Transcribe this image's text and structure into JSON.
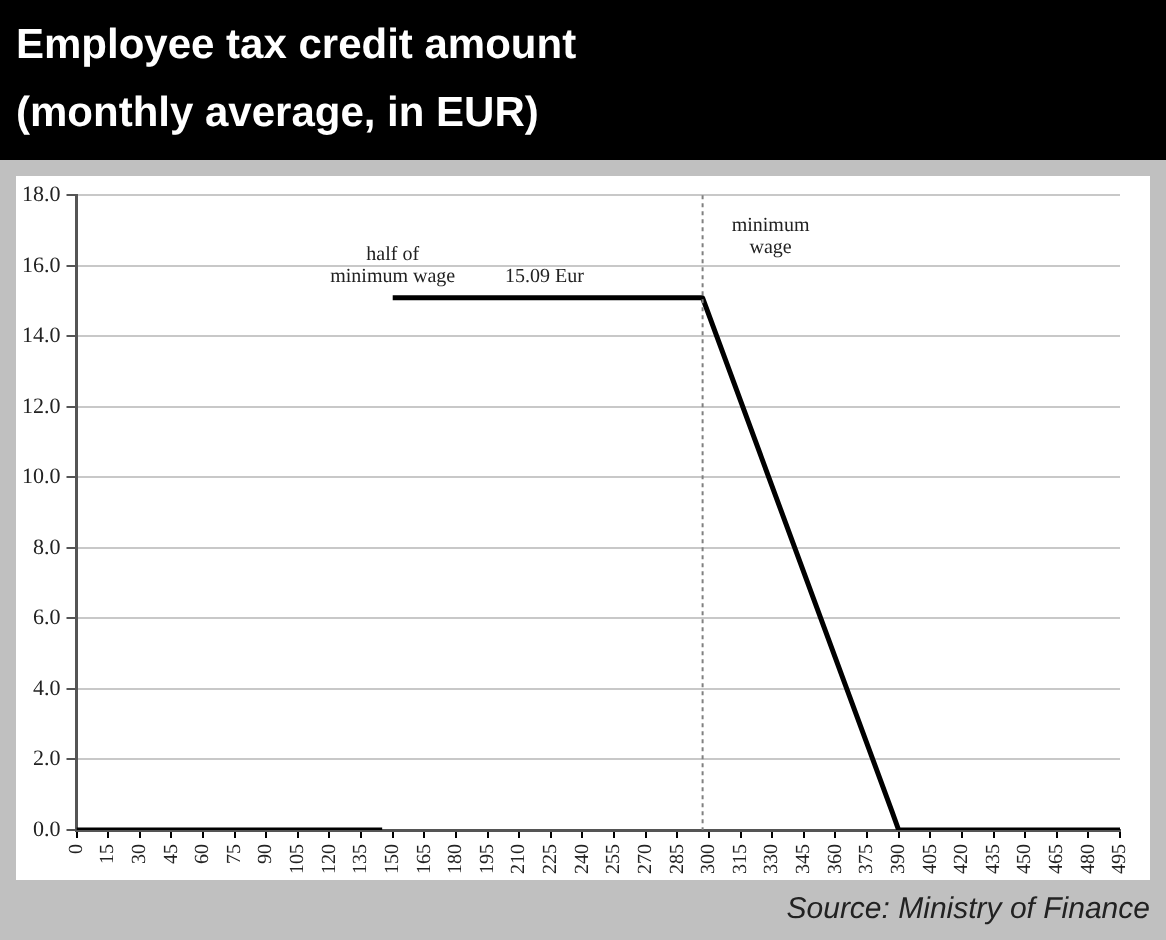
{
  "chart_data": {
    "type": "line",
    "title": "Employee tax credit amount",
    "subtitle": "(monthly average, in EUR)",
    "x": [
      0,
      145,
      147,
      150,
      297,
      387,
      390,
      495
    ],
    "series": [
      {
        "color": "#000000",
        "values": [
          0,
          0,
          null,
          15.09,
          15.09,
          0.5,
          0,
          0
        ]
      }
    ],
    "xlim": [
      0,
      495
    ],
    "xticks": [
      0,
      15,
      30,
      45,
      60,
      75,
      90,
      105,
      120,
      135,
      150,
      165,
      180,
      195,
      210,
      225,
      240,
      255,
      270,
      285,
      300,
      315,
      330,
      345,
      360,
      375,
      390,
      405,
      420,
      435,
      450,
      465,
      480,
      495
    ],
    "ylim": [
      0,
      18
    ],
    "yticks": [
      {
        "value": 0,
        "label": "0.0"
      },
      {
        "value": 2,
        "label": "2.0"
      },
      {
        "value": 4,
        "label": "4.0"
      },
      {
        "value": 6,
        "label": "6.0"
      },
      {
        "value": 8,
        "label": "8.0"
      },
      {
        "value": 10,
        "label": "10.0"
      },
      {
        "value": 12,
        "label": "12.0"
      },
      {
        "value": 14,
        "label": "14.0"
      },
      {
        "value": 16,
        "label": "16.0"
      },
      {
        "value": 18,
        "label": "18.0"
      }
    ],
    "grid": "y",
    "legend": false,
    "marker": "none",
    "line_style": "solid",
    "ref_lines": [
      {
        "axis": "x",
        "value": 297,
        "label": "minimum\nwage",
        "color": "#808080",
        "line_style": "dotted"
      }
    ],
    "annotations": [
      {
        "text": "half of\nminimum wage",
        "x": 150,
        "y": 15.09
      },
      {
        "text": "15.09 Eur",
        "x": 222,
        "y": 15.09
      },
      "Source: Ministry of Finance"
    ]
  }
}
